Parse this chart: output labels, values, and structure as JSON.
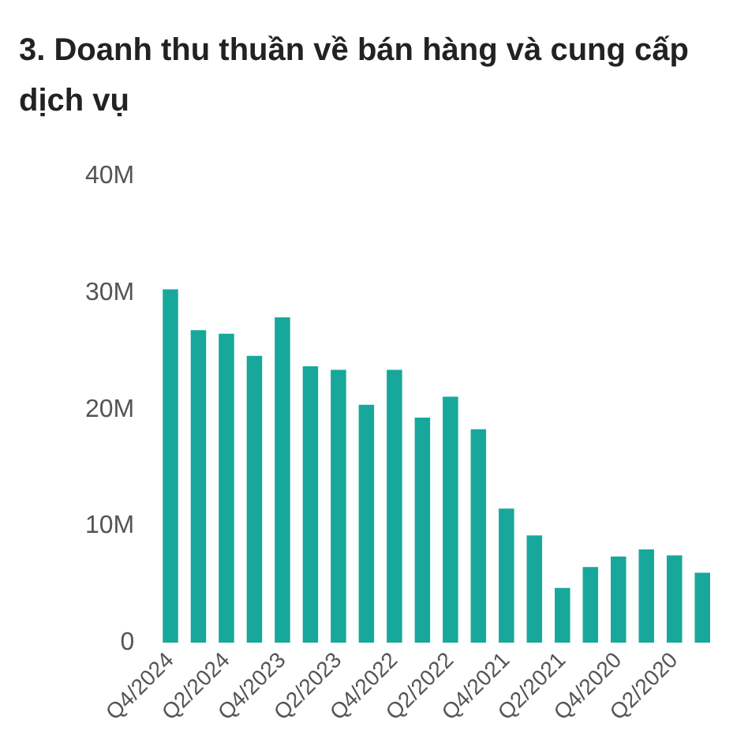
{
  "chart_data": {
    "type": "bar",
    "title": "3. Doanh thu thuần về bán hàng và cung cấp dịch vụ",
    "categories": [
      "Q4/2024",
      null,
      "Q2/2024",
      null,
      "Q4/2023",
      null,
      "Q2/2023",
      null,
      "Q4/2022",
      null,
      "Q2/2022",
      null,
      "Q4/2021",
      null,
      "Q2/2021",
      null,
      "Q4/2020",
      null,
      "Q2/2020",
      null
    ],
    "values": [
      30.3,
      26.8,
      26.5,
      24.6,
      27.9,
      23.7,
      23.4,
      20.4,
      23.4,
      19.3,
      21.1,
      18.3,
      11.5,
      9.2,
      4.7,
      6.5,
      7.4,
      8.0,
      7.5,
      6.0
    ],
    "color": "#17a89b",
    "ylim": [
      0,
      40
    ],
    "yticks": [
      {
        "value": 0,
        "label": "0"
      },
      {
        "value": 10,
        "label": "10M"
      },
      {
        "value": 20,
        "label": "20M"
      },
      {
        "value": 30,
        "label": "30M"
      },
      {
        "value": 40,
        "label": "40M"
      }
    ],
    "grid": false,
    "legend": false
  }
}
